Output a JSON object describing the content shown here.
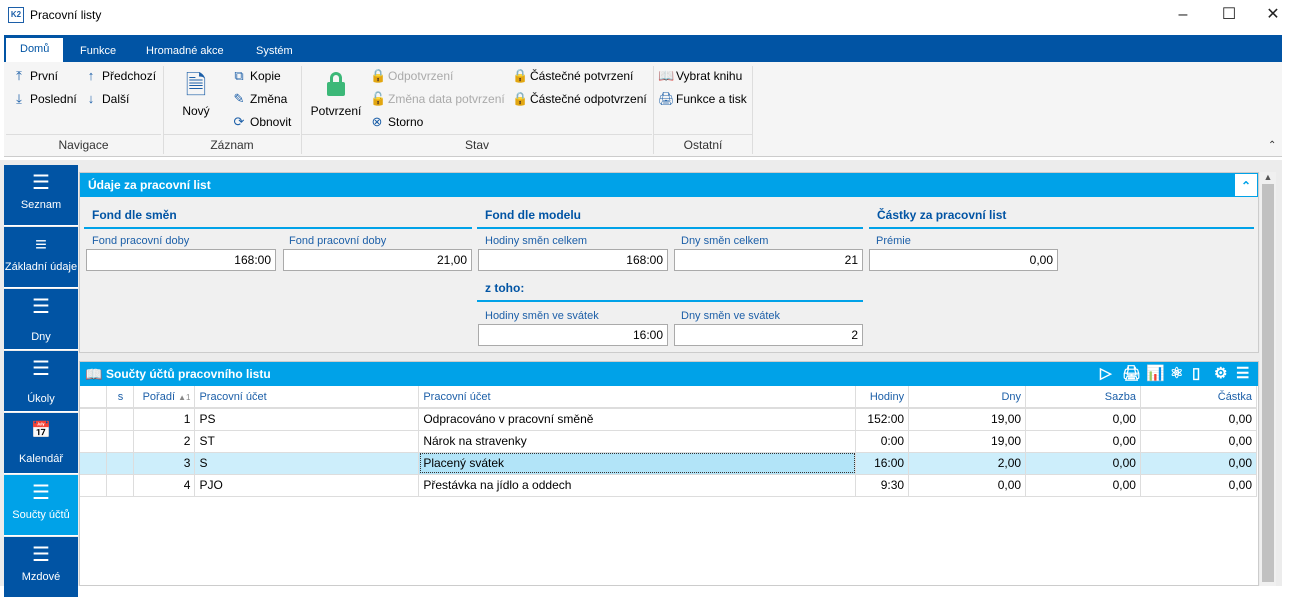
{
  "window": {
    "title": "Pracovní listy"
  },
  "ribbon": {
    "tabs": [
      "Domů",
      "Funkce",
      "Hromadné akce",
      "Systém"
    ],
    "navigace": {
      "label": "Navigace",
      "items": [
        "První",
        "Poslední",
        "Předchozí",
        "Další"
      ]
    },
    "zaznam": {
      "label": "Záznam",
      "novy": "Nový",
      "items": [
        "Kopie",
        "Změna",
        "Obnovit"
      ]
    },
    "stav": {
      "label": "Stav",
      "potvrzeni": "Potvrzení",
      "odpotvrzeni": "Odpotvrzení",
      "zmena_data": "Změna data potvrzení",
      "storno": "Storno",
      "castecne_potvrzeni": "Částečné potvrzení",
      "castecne_odpotvrzeni": "Částečné odpotvrzení"
    },
    "ostatni": {
      "label": "Ostatní",
      "items": [
        "Vybrat knihu",
        "Funkce a tisk"
      ]
    }
  },
  "sidebar": {
    "items": [
      {
        "label": "Seznam"
      },
      {
        "label": "Základní údaje"
      },
      {
        "label": "Dny"
      },
      {
        "label": "Úkoly"
      },
      {
        "label": "Kalendář"
      },
      {
        "label": "Součty účtů",
        "active": true
      },
      {
        "label": "Mzdové"
      }
    ]
  },
  "udaje": {
    "title": "Údaje za pracovní list",
    "fond_smen": {
      "title": "Fond dle směn",
      "f1_label": "Fond pracovní doby",
      "f1": "168:00",
      "f2_label": "Fond pracovní doby",
      "f2": "21,00"
    },
    "fond_modelu": {
      "title": "Fond dle modelu",
      "f1_label": "Hodiny směn celkem",
      "f1": "168:00",
      "f2_label": "Dny směn celkem",
      "f2": "21",
      "ztoho": "z toho:",
      "f3_label": "Hodiny směn ve svátek",
      "f3": "16:00",
      "f4_label": "Dny směn ve svátek",
      "f4": "2"
    },
    "castky": {
      "title": "Částky za pracovní list",
      "f1_label": "Prémie",
      "f1": "0,00"
    }
  },
  "soucty": {
    "title": "Součty účtů pracovního listu",
    "columns": [
      "s",
      "Pořadí",
      "Pracovní účet",
      "Pracovní účet",
      "Hodiny",
      "Dny",
      "Sazba",
      "Částka"
    ],
    "sort_indicator": "▲1",
    "rows": [
      [
        "",
        "1",
        "PS",
        "Odpracováno v pracovní směně",
        "152:00",
        "19,00",
        "0,00",
        "0,00"
      ],
      [
        "",
        "2",
        "ST",
        "Nárok na stravenky",
        "0:00",
        "19,00",
        "0,00",
        "0,00"
      ],
      [
        "",
        "3",
        "S",
        "Placený svátek",
        "16:00",
        "2,00",
        "0,00",
        "0,00"
      ],
      [
        "",
        "4",
        "PJO",
        "Přestávka na jídlo a oddech",
        "9:30",
        "0,00",
        "0,00",
        "0,00"
      ]
    ],
    "selected_row": 2
  },
  "colors": {
    "ribbon_blue": "#0154a4",
    "accent": "#00a2e8",
    "selected_row": "#cdeefb"
  }
}
